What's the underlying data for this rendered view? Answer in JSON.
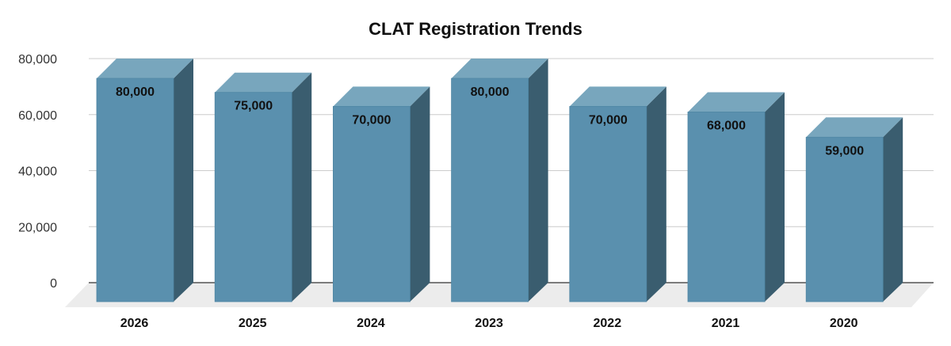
{
  "chart_data": {
    "type": "bar",
    "title": "CLAT Registration Trends",
    "xlabel": "",
    "ylabel": "",
    "categories": [
      "2026",
      "2025",
      "2024",
      "2023",
      "2022",
      "2021",
      "2020"
    ],
    "values": [
      80000,
      75000,
      70000,
      80000,
      70000,
      68000,
      59000
    ],
    "data_labels": [
      "80,000",
      "75,000",
      "70,000",
      "80,000",
      "70,000",
      "68,000",
      "59,000"
    ],
    "yticks": [
      0,
      20000,
      40000,
      60000,
      80000
    ],
    "ytick_labels": [
      "0",
      "20,000",
      "40,000",
      "60,000",
      "80,000"
    ],
    "ylim": [
      0,
      80000
    ],
    "grid": true,
    "legend": "none",
    "style": "3d-column",
    "colors": {
      "front": "#5a90ae",
      "top": "#78a6bd",
      "side": "#3a5d6f",
      "floor": "#ececec",
      "grid": "#cccccc",
      "axis": "#333333"
    }
  }
}
